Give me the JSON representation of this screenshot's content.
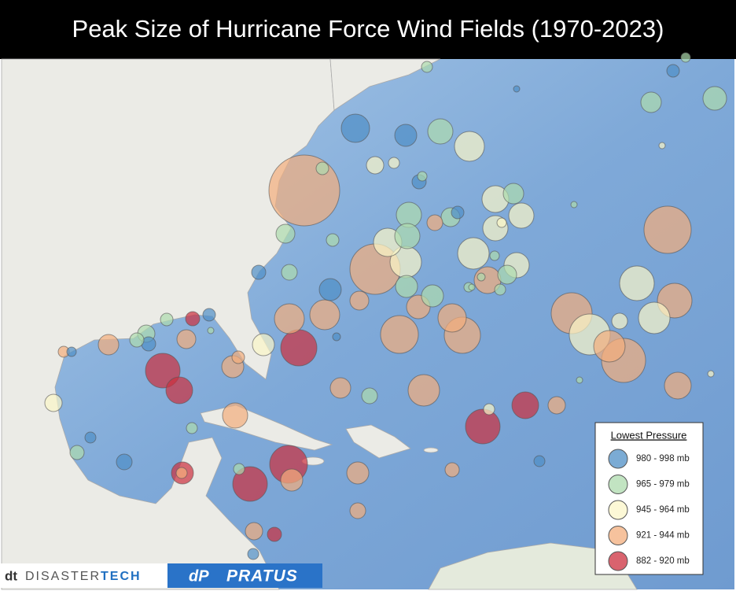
{
  "title": "Peak Size of Hurricane Force Wind Fields (1970-2023)",
  "legend": {
    "title": "Lowest Pressure",
    "items": [
      {
        "label": "980 - 998 mb",
        "color": "#4f8fc6"
      },
      {
        "label": "965 - 979 mb",
        "color": "#aedbae"
      },
      {
        "label": "945 - 964 mb",
        "color": "#fbf6c8"
      },
      {
        "label": "921 - 944 mb",
        "color": "#f3ae7c"
      },
      {
        "label": "882 - 920 mb",
        "color": "#cc2f3d"
      }
    ]
  },
  "logos": {
    "dt": "dt",
    "disaster": "DISASTER",
    "tech": "TECH",
    "pratus_icon": "dP",
    "pratus": "PRATUS"
  }
}
